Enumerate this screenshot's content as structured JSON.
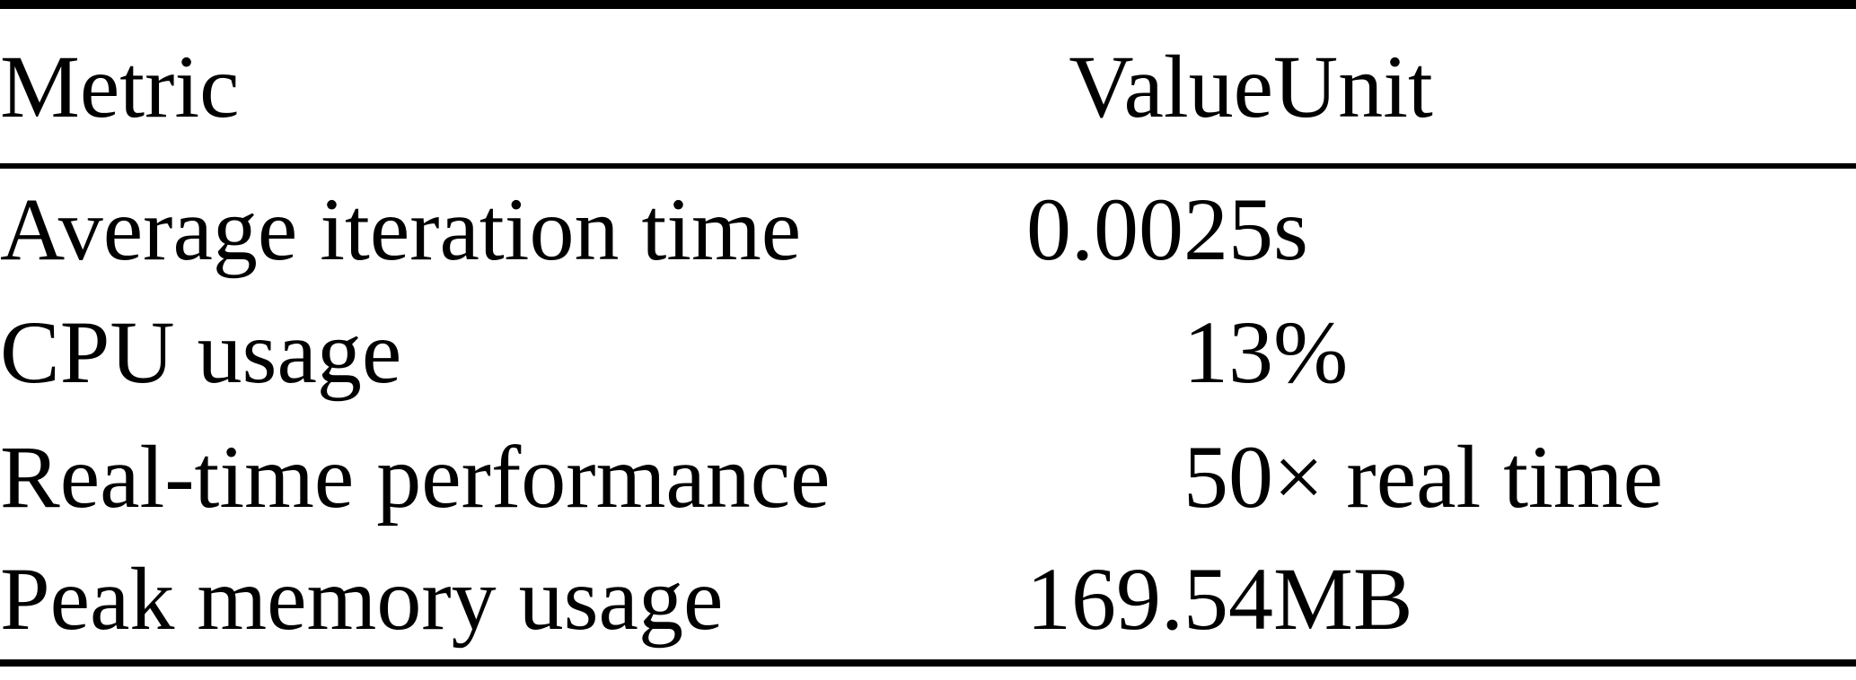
{
  "colors": {
    "background": "#ffffff",
    "text": "#000000",
    "rule": "#000000"
  },
  "table": {
    "columns": [
      "Metric",
      "Value",
      "Unit"
    ],
    "rows": [
      {
        "metric": "Average iteration time",
        "value": "0.0025",
        "unit": "s"
      },
      {
        "metric": "CPU usage",
        "value": "13",
        "unit": "%"
      },
      {
        "metric": "Real-time performance",
        "value": "50",
        "unit": "× real time"
      },
      {
        "metric": "Peak memory usage",
        "value": "169.54",
        "unit": "MB"
      }
    ]
  }
}
